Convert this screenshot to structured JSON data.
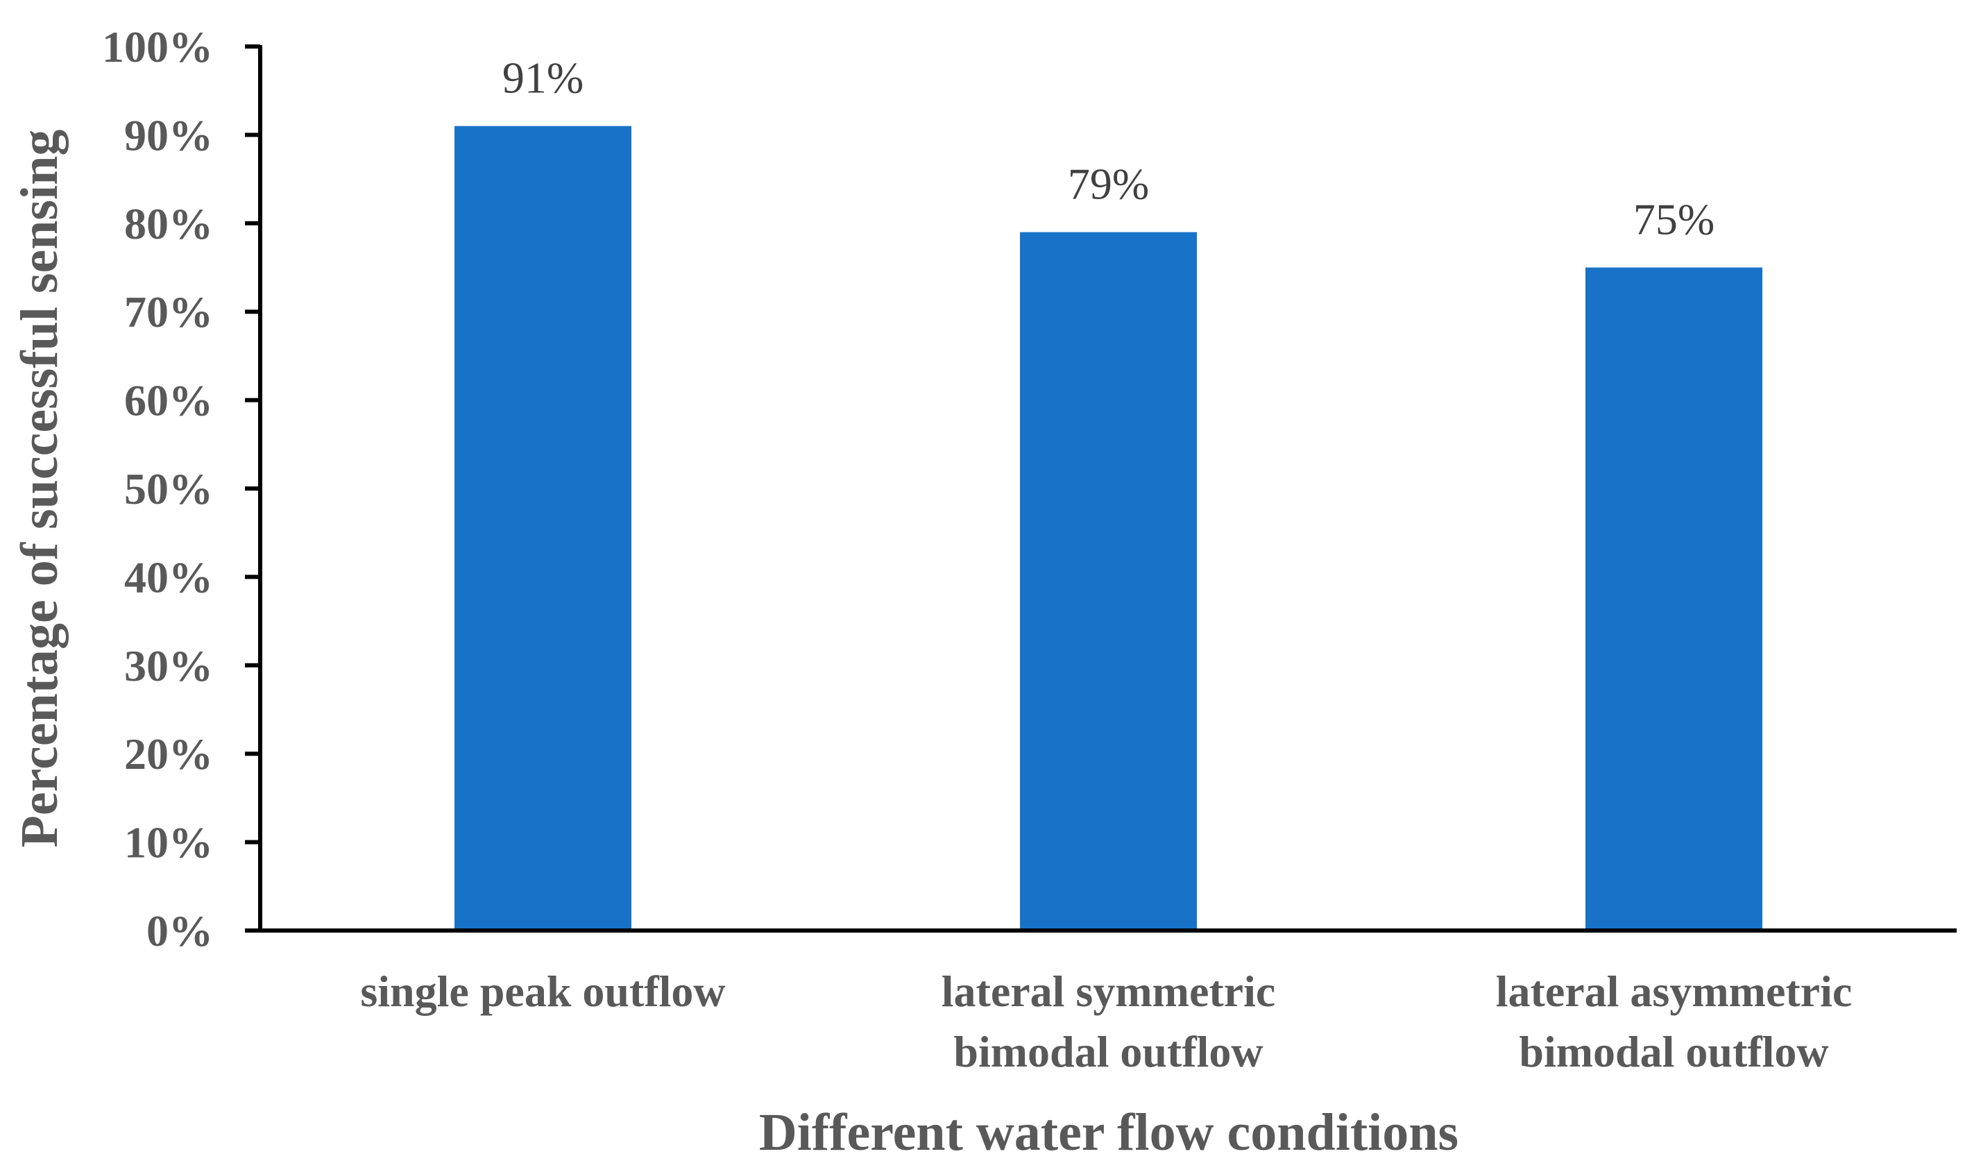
{
  "chart_data": {
    "type": "bar",
    "categories": [
      [
        "single peak outflow"
      ],
      [
        "lateral symmetric",
        "bimodal outflow"
      ],
      [
        "lateral asymmetric",
        "bimodal outflow"
      ]
    ],
    "values": [
      91,
      79,
      75
    ],
    "data_labels": [
      "91%",
      "79%",
      "75%"
    ],
    "title": "",
    "xlabel": "Different water flow conditions",
    "ylabel": "Percentage of successful sensing",
    "ylim": [
      0,
      100
    ],
    "yticks": [
      0,
      10,
      20,
      30,
      40,
      50,
      60,
      70,
      80,
      90,
      100
    ],
    "ytick_labels": [
      "0%",
      "10%",
      "20%",
      "30%",
      "40%",
      "50%",
      "60%",
      "70%",
      "80%",
      "90%",
      "100%"
    ],
    "grid": false,
    "bar_color": "#1873C8",
    "axis_color": "#000000",
    "text_color": "#595959"
  }
}
